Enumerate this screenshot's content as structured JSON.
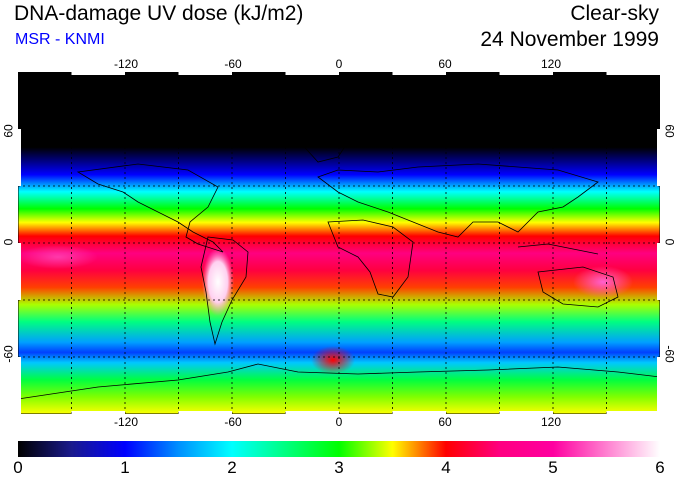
{
  "header": {
    "title": "DNA-damage UV dose (kJ/m2)",
    "subtitle": "MSR - KNMI",
    "condition": "Clear-sky",
    "date": "24 November 1999"
  },
  "map": {
    "projection": "equirectangular",
    "lon_range": [
      -180,
      180
    ],
    "lat_range": [
      -90,
      90
    ],
    "grid_lines": true,
    "lon_ticks": [
      {
        "value": -120,
        "label": "-120"
      },
      {
        "value": -60,
        "label": "-60"
      },
      {
        "value": 0,
        "label": "0"
      },
      {
        "value": 60,
        "label": "60"
      },
      {
        "value": 120,
        "label": "120"
      }
    ],
    "lat_ticks": [
      {
        "value": 60,
        "label": "60"
      },
      {
        "value": 0,
        "label": "0"
      },
      {
        "value": -60,
        "label": "-60"
      }
    ],
    "colors": {
      "background": "#ffffff",
      "coastline": "#000000",
      "grid": "#000000"
    }
  },
  "colorbar": {
    "min": 0,
    "max": 6,
    "labels": [
      "0",
      "1",
      "2",
      "3",
      "4",
      "5",
      "6"
    ],
    "stops": [
      {
        "value": 0.0,
        "color": "#000000"
      },
      {
        "value": 0.5,
        "color": "#1a1a8c"
      },
      {
        "value": 1.0,
        "color": "#0000ff"
      },
      {
        "value": 1.5,
        "color": "#0090ff"
      },
      {
        "value": 2.0,
        "color": "#00ffff"
      },
      {
        "value": 2.5,
        "color": "#00ff80"
      },
      {
        "value": 3.0,
        "color": "#00ff00"
      },
      {
        "value": 3.5,
        "color": "#ffff00"
      },
      {
        "value": 4.0,
        "color": "#ff0000"
      },
      {
        "value": 4.5,
        "color": "#ff0080"
      },
      {
        "value": 5.0,
        "color": "#ff00a0"
      },
      {
        "value": 5.5,
        "color": "#ff80d0"
      },
      {
        "value": 6.0,
        "color": "#ffffff"
      }
    ]
  }
}
